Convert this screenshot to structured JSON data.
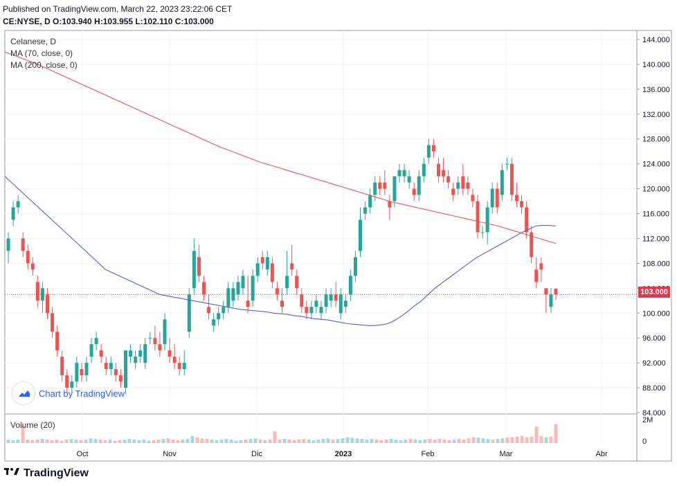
{
  "header": {
    "published": "Published on TradingView.com, March 22, 2023 23:22:06 CET",
    "ohlc": "CE:NYSE, D O:103.940 H:103.955 L:102.110 C:103.000"
  },
  "legend": {
    "title": "Celanese, D",
    "ma70": "MA (70, close, 0)",
    "ma200": "MA (200, close, 0)"
  },
  "watermark": "Chart by TradingView",
  "footer_brand": "TradingView",
  "last_price": "103.000",
  "colors": {
    "up": "#26a69a",
    "down": "#ef5350",
    "ma70": "#5b5bd6",
    "ma200": "#ef5350",
    "price_line": "#e0394d"
  },
  "chart_data": {
    "type": "candlestick",
    "y_axis": {
      "ylim": [
        84,
        145
      ],
      "ticks": [
        "84.000",
        "88.000",
        "92.000",
        "96.000",
        "100.000",
        "104.000",
        "108.000",
        "112.000",
        "116.000",
        "120.000",
        "124.000",
        "128.000",
        "132.000",
        "136.000",
        "140.000",
        "144.000"
      ]
    },
    "x_axis_labels": [
      "Oct",
      "Nov",
      "Dic",
      "2023",
      "Feb",
      "Mar",
      "Abr"
    ],
    "volume": {
      "label": "Volume (20)",
      "ticks": [
        "2M",
        "0"
      ]
    },
    "candles": [
      {
        "o": 110,
        "h": 113,
        "l": 108,
        "c": 112
      },
      {
        "o": 115,
        "h": 118,
        "l": 114,
        "c": 117
      },
      {
        "o": 117,
        "h": 119,
        "l": 116,
        "c": 118
      },
      {
        "o": 112,
        "h": 113,
        "l": 109,
        "c": 110
      },
      {
        "o": 110,
        "h": 111,
        "l": 107,
        "c": 108
      },
      {
        "o": 108,
        "h": 109,
        "l": 106,
        "c": 107
      },
      {
        "o": 105,
        "h": 106,
        "l": 101,
        "c": 102
      },
      {
        "o": 102,
        "h": 105,
        "l": 100,
        "c": 104
      },
      {
        "o": 103,
        "h": 104,
        "l": 99,
        "c": 100
      },
      {
        "o": 100,
        "h": 101,
        "l": 96,
        "c": 97
      },
      {
        "o": 97,
        "h": 98,
        "l": 93,
        "c": 94
      },
      {
        "o": 93,
        "h": 94,
        "l": 89,
        "c": 90
      },
      {
        "o": 90,
        "h": 91,
        "l": 87,
        "c": 88
      },
      {
        "o": 88,
        "h": 90,
        "l": 87,
        "c": 89
      },
      {
        "o": 89,
        "h": 93,
        "l": 88,
        "c": 92
      },
      {
        "o": 91,
        "h": 92,
        "l": 89,
        "c": 90
      },
      {
        "o": 90,
        "h": 93,
        "l": 89,
        "c": 92
      },
      {
        "o": 93,
        "h": 96,
        "l": 92,
        "c": 95
      },
      {
        "o": 95,
        "h": 97,
        "l": 94,
        "c": 96
      },
      {
        "o": 94,
        "h": 95,
        "l": 92,
        "c": 93
      },
      {
        "o": 92,
        "h": 93,
        "l": 90,
        "c": 91
      },
      {
        "o": 91,
        "h": 93,
        "l": 90,
        "c": 92
      },
      {
        "o": 91,
        "h": 92,
        "l": 89,
        "c": 90
      },
      {
        "o": 90,
        "h": 91,
        "l": 88,
        "c": 89
      },
      {
        "o": 88,
        "h": 94,
        "l": 87,
        "c": 94
      },
      {
        "o": 93,
        "h": 95,
        "l": 92,
        "c": 94
      },
      {
        "o": 92,
        "h": 94,
        "l": 91,
        "c": 93
      },
      {
        "o": 93,
        "h": 95,
        "l": 92,
        "c": 94
      },
      {
        "o": 92,
        "h": 96,
        "l": 91,
        "c": 95
      },
      {
        "o": 96,
        "h": 97,
        "l": 95,
        "c": 96
      },
      {
        "o": 96,
        "h": 98,
        "l": 94,
        "c": 95
      },
      {
        "o": 95,
        "h": 97,
        "l": 93,
        "c": 94
      },
      {
        "o": 95,
        "h": 100,
        "l": 94,
        "c": 99
      },
      {
        "o": 94,
        "h": 96,
        "l": 92,
        "c": 93
      },
      {
        "o": 93,
        "h": 95,
        "l": 91,
        "c": 92
      },
      {
        "o": 92,
        "h": 93,
        "l": 90,
        "c": 91
      },
      {
        "o": 91,
        "h": 94,
        "l": 90,
        "c": 92
      },
      {
        "o": 97,
        "h": 104,
        "l": 96,
        "c": 103
      },
      {
        "o": 104,
        "h": 112,
        "l": 103,
        "c": 110
      },
      {
        "o": 109,
        "h": 111,
        "l": 105,
        "c": 106
      },
      {
        "o": 105,
        "h": 106,
        "l": 102,
        "c": 103
      },
      {
        "o": 101,
        "h": 103,
        "l": 99,
        "c": 100
      },
      {
        "o": 98,
        "h": 100,
        "l": 97,
        "c": 99
      },
      {
        "o": 99,
        "h": 101,
        "l": 98,
        "c": 100
      },
      {
        "o": 100,
        "h": 102,
        "l": 99,
        "c": 101
      },
      {
        "o": 101,
        "h": 105,
        "l": 100,
        "c": 104
      },
      {
        "o": 102,
        "h": 105,
        "l": 101,
        "c": 104
      },
      {
        "o": 103,
        "h": 106,
        "l": 102,
        "c": 105
      },
      {
        "o": 104,
        "h": 107,
        "l": 103,
        "c": 106
      },
      {
        "o": 102,
        "h": 106,
        "l": 100,
        "c": 101
      },
      {
        "o": 102,
        "h": 107,
        "l": 101,
        "c": 106
      },
      {
        "o": 106,
        "h": 109,
        "l": 105,
        "c": 108
      },
      {
        "o": 109,
        "h": 110,
        "l": 107,
        "c": 108
      },
      {
        "o": 107,
        "h": 110,
        "l": 106,
        "c": 109
      },
      {
        "o": 108,
        "h": 109,
        "l": 104,
        "c": 105
      },
      {
        "o": 104,
        "h": 105,
        "l": 102,
        "c": 103
      },
      {
        "o": 102,
        "h": 104,
        "l": 100,
        "c": 101
      },
      {
        "o": 104,
        "h": 110,
        "l": 103,
        "c": 106
      },
      {
        "o": 108,
        "h": 111,
        "l": 106,
        "c": 107
      },
      {
        "o": 106,
        "h": 107,
        "l": 103,
        "c": 104
      },
      {
        "o": 103,
        "h": 104,
        "l": 100,
        "c": 101
      },
      {
        "o": 101,
        "h": 102,
        "l": 99,
        "c": 100
      },
      {
        "o": 100,
        "h": 102,
        "l": 99,
        "c": 101
      },
      {
        "o": 101,
        "h": 103,
        "l": 100,
        "c": 102
      },
      {
        "o": 100,
        "h": 102,
        "l": 99,
        "c": 101
      },
      {
        "o": 101,
        "h": 104,
        "l": 100,
        "c": 103
      },
      {
        "o": 102,
        "h": 104,
        "l": 101,
        "c": 103
      },
      {
        "o": 103,
        "h": 105,
        "l": 101,
        "c": 102
      },
      {
        "o": 100,
        "h": 104,
        "l": 99,
        "c": 103
      },
      {
        "o": 101,
        "h": 103,
        "l": 100,
        "c": 102
      },
      {
        "o": 103,
        "h": 107,
        "l": 102,
        "c": 106
      },
      {
        "o": 106,
        "h": 110,
        "l": 105,
        "c": 109
      },
      {
        "o": 110,
        "h": 117,
        "l": 109,
        "c": 115
      },
      {
        "o": 116,
        "h": 118,
        "l": 115,
        "c": 117
      },
      {
        "o": 117,
        "h": 120,
        "l": 116,
        "c": 119
      },
      {
        "o": 119,
        "h": 122,
        "l": 118,
        "c": 121
      },
      {
        "o": 121,
        "h": 122,
        "l": 119,
        "c": 120
      },
      {
        "o": 121,
        "h": 123,
        "l": 119,
        "c": 120
      },
      {
        "o": 118,
        "h": 119,
        "l": 115,
        "c": 117
      },
      {
        "o": 118,
        "h": 122,
        "l": 117,
        "c": 122
      },
      {
        "o": 122,
        "h": 124,
        "l": 121,
        "c": 123
      },
      {
        "o": 122,
        "h": 124,
        "l": 121,
        "c": 123
      },
      {
        "o": 121,
        "h": 123,
        "l": 120,
        "c": 122
      },
      {
        "o": 120,
        "h": 121,
        "l": 118,
        "c": 119
      },
      {
        "o": 119,
        "h": 123,
        "l": 118,
        "c": 122
      },
      {
        "o": 122,
        "h": 125,
        "l": 121,
        "c": 124
      },
      {
        "o": 125,
        "h": 128,
        "l": 124,
        "c": 127
      },
      {
        "o": 127,
        "h": 128,
        "l": 125,
        "c": 126
      },
      {
        "o": 124,
        "h": 125,
        "l": 121,
        "c": 122
      },
      {
        "o": 123,
        "h": 125,
        "l": 121,
        "c": 122
      },
      {
        "o": 122,
        "h": 123,
        "l": 120,
        "c": 121
      },
      {
        "o": 120,
        "h": 121,
        "l": 118,
        "c": 119
      },
      {
        "o": 120,
        "h": 122,
        "l": 119,
        "c": 121
      },
      {
        "o": 122,
        "h": 124,
        "l": 119,
        "c": 120
      },
      {
        "o": 121,
        "h": 122,
        "l": 119,
        "c": 120
      },
      {
        "o": 119,
        "h": 120,
        "l": 117,
        "c": 118
      },
      {
        "o": 118,
        "h": 119,
        "l": 112,
        "c": 113
      },
      {
        "o": 113,
        "h": 114,
        "l": 112,
        "c": 113
      },
      {
        "o": 113,
        "h": 118,
        "l": 111,
        "c": 117
      },
      {
        "o": 117,
        "h": 121,
        "l": 116,
        "c": 120
      },
      {
        "o": 120,
        "h": 121,
        "l": 116,
        "c": 117
      },
      {
        "o": 119,
        "h": 124,
        "l": 118,
        "c": 123
      },
      {
        "o": 124,
        "h": 125,
        "l": 123,
        "c": 124
      },
      {
        "o": 124,
        "h": 125,
        "l": 118,
        "c": 119
      },
      {
        "o": 119,
        "h": 121,
        "l": 117,
        "c": 118
      },
      {
        "o": 118,
        "h": 119,
        "l": 116,
        "c": 117
      },
      {
        "o": 117,
        "h": 118,
        "l": 112,
        "c": 113
      },
      {
        "o": 113,
        "h": 114,
        "l": 108,
        "c": 109
      },
      {
        "o": 107,
        "h": 109,
        "l": 104,
        "c": 105
      },
      {
        "o": 108,
        "h": 109,
        "l": 105,
        "c": 107
      },
      {
        "o": 104,
        "h": 104,
        "l": 100,
        "c": 103
      },
      {
        "o": 101,
        "h": 104,
        "l": 100,
        "c": 103
      },
      {
        "o": 103.94,
        "h": 103.955,
        "l": 102.11,
        "c": 103
      }
    ],
    "ma70": [
      122,
      121,
      120,
      119,
      118,
      117,
      116,
      115,
      114,
      113,
      112,
      111,
      110,
      109,
      108,
      107,
      106.5,
      106,
      105.5,
      105,
      104.5,
      104,
      103.5,
      103,
      102.8,
      102.6,
      102.4,
      102.2,
      102,
      101.8,
      101.6,
      101.4,
      101.2,
      101,
      100.8,
      100.6,
      100.5,
      100.4,
      100.3,
      100.2,
      100,
      99.9,
      99.8,
      99.6,
      99.5,
      99.3,
      99.1,
      99,
      98.9,
      98.7,
      98.5,
      98.3,
      98.2,
      98.1,
      98,
      98,
      98.1,
      98.3,
      98.8,
      99.5,
      100.3,
      101.2,
      102,
      103,
      104,
      104.8,
      105.6,
      106.4,
      107.2,
      108,
      108.8,
      109.4,
      110,
      110.6,
      111.2,
      111.8,
      112.4,
      113,
      113.5,
      114,
      114.1,
      114.1,
      114
    ],
    "ma200": [
      142,
      141.5,
      141,
      140.5,
      140,
      139.4,
      138.8,
      138.2,
      137.6,
      137,
      136.4,
      135.8,
      135.2,
      134.6,
      134,
      133.4,
      132.8,
      132.2,
      131.6,
      131,
      130.4,
      129.8,
      129.2,
      128.6,
      128,
      127.4,
      126.8,
      126.3,
      125.8,
      125.3,
      124.8,
      124.3,
      123.9,
      123.5,
      123.1,
      122.7,
      122.3,
      121.9,
      121.5,
      121.1,
      120.7,
      120.3,
      119.9,
      119.5,
      119.1,
      118.7,
      118.3,
      117.9,
      117.6,
      117.3,
      117,
      116.7,
      116.4,
      116.1,
      115.8,
      115.5,
      115.2,
      114.9,
      114.6,
      114.3,
      114,
      113.6,
      113.2,
      112.8,
      112.4,
      112,
      111.6,
      111.2
    ],
    "volumes": [
      0.3,
      0.25,
      0.3,
      1.5,
      0.3,
      0.25,
      0.3,
      0.35,
      0.3,
      0.25,
      0.3,
      0.2,
      0.3,
      0.35,
      0.3,
      0.25,
      0.3,
      0.4,
      0.35,
      0.3,
      0.25,
      0.3,
      0.2,
      0.25,
      0.3,
      0.35,
      0.3,
      0.25,
      0.3,
      0.2,
      0.25,
      0.3,
      0.35,
      0.4,
      0.3,
      0.25,
      0.3,
      0.35,
      0.6,
      0.5,
      0.4,
      0.35,
      0.3,
      0.25,
      0.3,
      0.35,
      0.3,
      0.2,
      0.25,
      0.3,
      0.35,
      0.4,
      0.3,
      0.25,
      0.3,
      1.0,
      0.3,
      0.35,
      0.3,
      0.25,
      0.3,
      0.35,
      0.3,
      0.25,
      0.3,
      0.35,
      0.4,
      0.3,
      0.35,
      0.4,
      0.5,
      0.45,
      0.4,
      0.35,
      0.3,
      0.35,
      0.3,
      0.25,
      0.3,
      0.35,
      0.3,
      0.25,
      0.3,
      0.35,
      0.3,
      0.25,
      0.3,
      0.35,
      0.3,
      0.35,
      0.3,
      0.25,
      0.3,
      0.35,
      0.3,
      0.4,
      0.5,
      0.45,
      0.4,
      0.35,
      0.3,
      0.35,
      0.4,
      0.45,
      0.5,
      0.55,
      0.6,
      0.5,
      0.55,
      1.4,
      0.6,
      0.5,
      0.55,
      1.6
    ]
  }
}
